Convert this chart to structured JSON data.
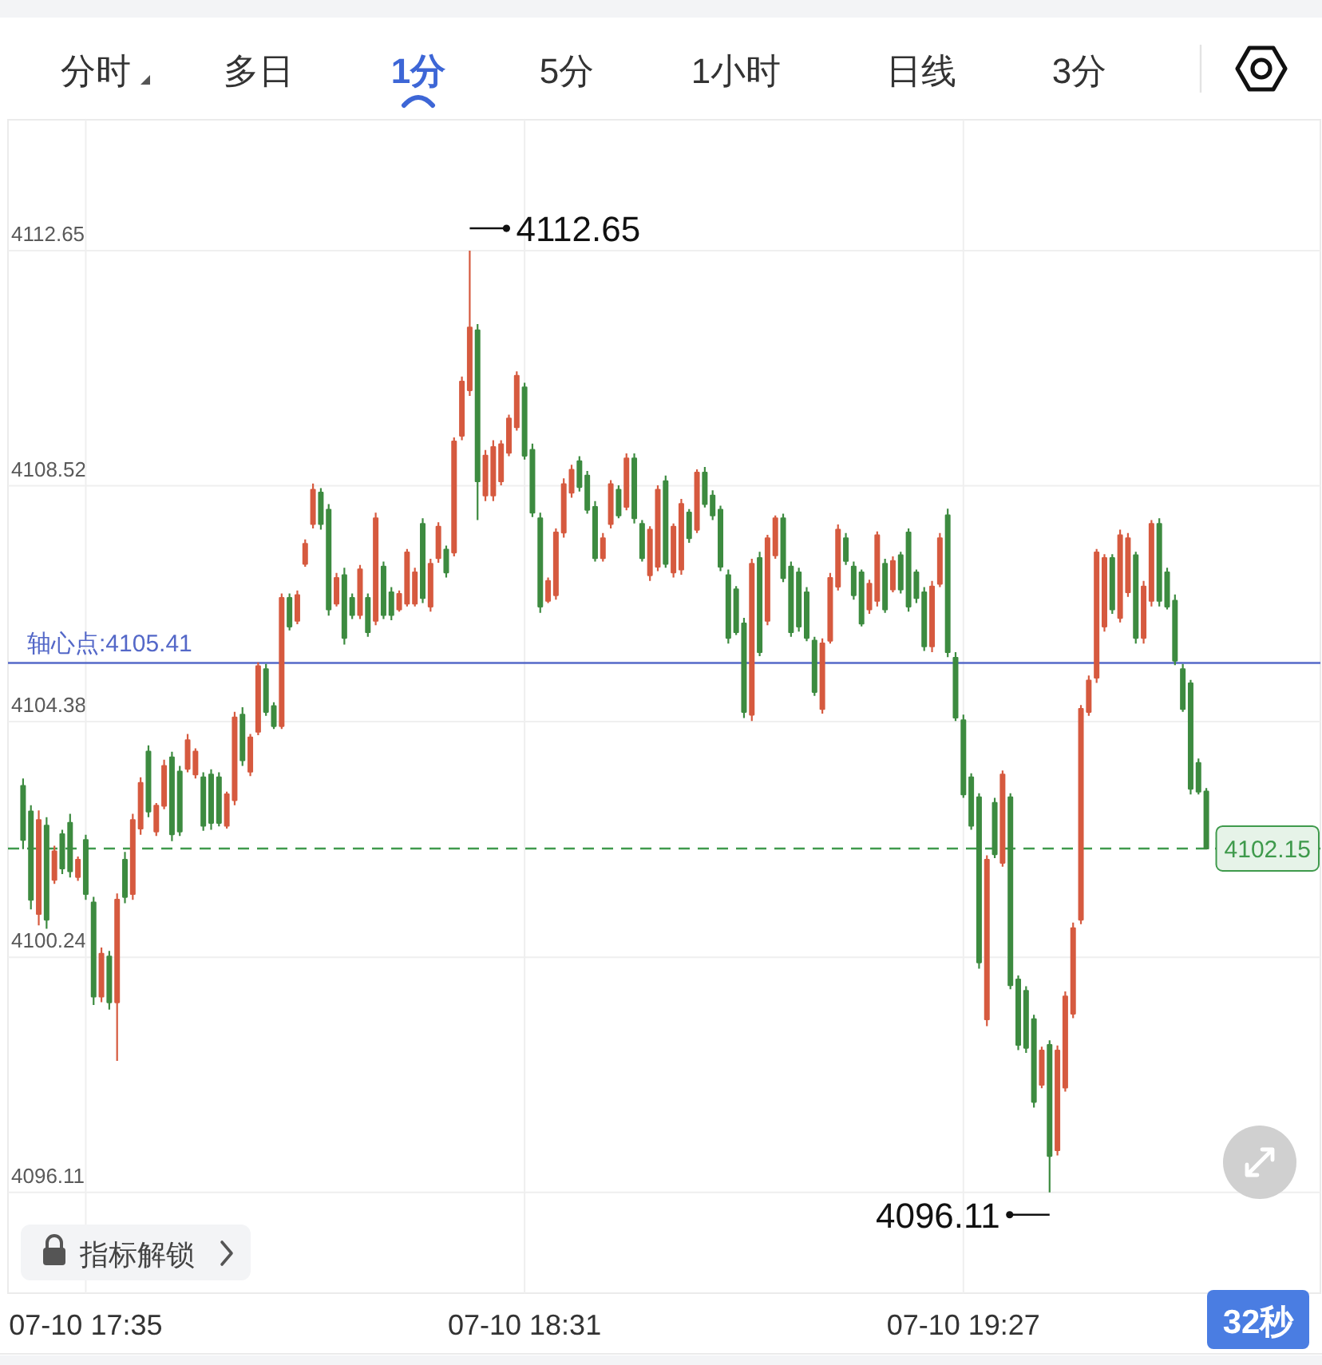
{
  "chart_data": {
    "type": "candlestick",
    "categories": [
      null,
      null,
      null,
      null,
      null,
      null,
      null,
      null,
      "07-10 17:35",
      null,
      null,
      null,
      null,
      null,
      null,
      null,
      null,
      null,
      null,
      null,
      null,
      null,
      null,
      null,
      null,
      null,
      null,
      null,
      null,
      null,
      null,
      null,
      null,
      null,
      null,
      null,
      null,
      null,
      null,
      null,
      null,
      null,
      null,
      null,
      null,
      null,
      null,
      null,
      null,
      null,
      null,
      null,
      null,
      null,
      null,
      null,
      null,
      null,
      null,
      null,
      null,
      null,
      null,
      null,
      "07-10 18:31",
      null,
      null,
      null,
      null,
      null,
      null,
      null,
      null,
      null,
      null,
      null,
      null,
      null,
      null,
      null,
      null,
      null,
      null,
      null,
      null,
      null,
      null,
      null,
      null,
      null,
      null,
      null,
      null,
      null,
      null,
      null,
      null,
      null,
      null,
      null,
      null,
      null,
      null,
      null,
      null,
      null,
      null,
      null,
      null,
      null,
      null,
      null,
      null,
      null,
      null,
      null,
      null,
      null,
      null,
      null,
      "07-10 19:27",
      null,
      null,
      null,
      null,
      null,
      null,
      null,
      null,
      null,
      null,
      null,
      null,
      null,
      null,
      null,
      null,
      null,
      null,
      null,
      null,
      null,
      null,
      null,
      null,
      null,
      null,
      null,
      null,
      null,
      null,
      null
    ],
    "ohlc": [
      [
        4103.25,
        4103.38,
        4102.14,
        4102.3
      ],
      [
        4102.8,
        4102.91,
        4101.08,
        4101.25
      ],
      [
        4101.0,
        4102.82,
        4100.8,
        4102.65
      ],
      [
        4102.55,
        4102.7,
        4100.74,
        4100.9
      ],
      [
        4101.6,
        4102.2,
        4101.53,
        4102.1
      ],
      [
        4102.4,
        4102.48,
        4101.7,
        4101.8
      ],
      [
        4102.6,
        4102.76,
        4101.64,
        4101.75
      ],
      [
        4101.65,
        4102.01,
        4101.58,
        4101.95
      ],
      [
        4102.3,
        4102.39,
        4101.25,
        4101.35
      ],
      [
        4101.2,
        4101.3,
        4099.4,
        4099.55
      ],
      [
        4099.55,
        4100.41,
        4099.45,
        4100.3
      ],
      [
        4100.25,
        4100.35,
        4099.32,
        4099.45
      ],
      [
        4099.45,
        4101.36,
        4098.42,
        4101.25
      ],
      [
        4101.95,
        4102.09,
        4101.19,
        4101.3
      ],
      [
        4101.35,
        4102.76,
        4101.25,
        4102.65
      ],
      [
        4102.5,
        4103.4,
        4102.39,
        4103.3
      ],
      [
        4103.85,
        4103.96,
        4102.7,
        4102.8
      ],
      [
        4102.45,
        4102.95,
        4102.37,
        4102.9
      ],
      [
        4102.9,
        4103.71,
        4102.84,
        4103.6
      ],
      [
        4103.75,
        4103.85,
        4102.28,
        4102.4
      ],
      [
        4103.5,
        4103.6,
        4102.37,
        4102.45
      ],
      [
        4103.55,
        4104.16,
        4103.49,
        4104.05
      ],
      [
        4103.45,
        4103.91,
        4103.38,
        4103.85
      ],
      [
        4103.4,
        4103.49,
        4102.46,
        4102.55
      ],
      [
        4103.45,
        4103.54,
        4102.48,
        4102.6
      ],
      [
        4103.4,
        4103.49,
        4102.54,
        4102.6
      ],
      [
        4102.55,
        4103.15,
        4102.5,
        4103.1
      ],
      [
        4103.0,
        4104.55,
        4102.91,
        4104.45
      ],
      [
        4104.5,
        4104.63,
        4103.6,
        4103.7
      ],
      [
        4103.5,
        4104.16,
        4103.42,
        4104.1
      ],
      [
        4104.2,
        4105.42,
        4104.14,
        4105.35
      ],
      [
        4105.3,
        4105.39,
        4104.48,
        4104.55
      ],
      [
        4104.65,
        4104.72,
        4104.25,
        4104.3
      ],
      [
        4104.3,
        4106.63,
        4104.25,
        4106.55
      ],
      [
        4106.55,
        4106.63,
        4105.98,
        4106.05
      ],
      [
        4106.15,
        4106.68,
        4106.09,
        4106.6
      ],
      [
        4107.15,
        4107.58,
        4107.1,
        4107.5
      ],
      [
        4107.85,
        4108.56,
        4107.77,
        4108.45
      ],
      [
        4108.4,
        4108.48,
        4107.75,
        4107.85
      ],
      [
        4108.1,
        4108.2,
        4106.24,
        4106.35
      ],
      [
        4106.45,
        4106.99,
        4106.4,
        4106.9
      ],
      [
        4106.95,
        4107.08,
        4105.73,
        4105.85
      ],
      [
        4106.55,
        4106.63,
        4106.18,
        4106.25
      ],
      [
        4106.25,
        4107.13,
        4106.18,
        4107.05
      ],
      [
        4106.55,
        4106.63,
        4105.87,
        4105.95
      ],
      [
        4106.15,
        4108.05,
        4106.07,
        4107.95
      ],
      [
        4107.1,
        4107.19,
        4106.18,
        4106.25
      ],
      [
        4106.65,
        4106.74,
        4106.16,
        4106.25
      ],
      [
        4106.35,
        4106.68,
        4106.31,
        4106.62
      ],
      [
        4106.45,
        4107.41,
        4106.4,
        4107.35
      ],
      [
        4106.45,
        4107.08,
        4106.4,
        4107.0
      ],
      [
        4107.85,
        4107.95,
        4106.46,
        4106.55
      ],
      [
        4106.4,
        4107.24,
        4106.31,
        4107.15
      ],
      [
        4107.25,
        4107.88,
        4107.17,
        4107.8
      ],
      [
        4107.4,
        4107.47,
        4106.91,
        4107.0
      ],
      [
        4107.35,
        4109.37,
        4107.28,
        4109.3
      ],
      [
        4109.4,
        4110.44,
        4109.32,
        4110.35
      ],
      [
        4110.2,
        4112.65,
        4110.1,
        4111.3
      ],
      [
        4111.25,
        4111.36,
        4107.92,
        4108.6
      ],
      [
        4108.35,
        4109.15,
        4108.25,
        4109.05
      ],
      [
        4108.35,
        4109.32,
        4108.25,
        4109.2
      ],
      [
        4108.6,
        4109.32,
        4108.53,
        4109.25
      ],
      [
        4109.1,
        4109.77,
        4109.04,
        4109.7
      ],
      [
        4109.55,
        4110.53,
        4109.49,
        4110.45
      ],
      [
        4110.25,
        4110.33,
        4108.98,
        4109.05
      ],
      [
        4109.15,
        4109.26,
        4107.97,
        4108.05
      ],
      [
        4107.95,
        4108.05,
        4106.29,
        4106.4
      ],
      [
        4106.5,
        4106.91,
        4106.46,
        4106.85
      ],
      [
        4106.6,
        4107.77,
        4106.52,
        4107.7
      ],
      [
        4107.7,
        4108.65,
        4107.61,
        4108.55
      ],
      [
        4108.4,
        4108.89,
        4108.31,
        4108.8
      ],
      [
        4108.95,
        4109.04,
        4108.42,
        4108.5
      ],
      [
        4108.7,
        4108.78,
        4108.03,
        4108.1
      ],
      [
        4108.15,
        4108.25,
        4107.19,
        4107.25
      ],
      [
        4107.25,
        4107.69,
        4107.19,
        4107.6
      ],
      [
        4107.85,
        4108.62,
        4107.77,
        4108.55
      ],
      [
        4108.45,
        4108.53,
        4107.95,
        4108.0
      ],
      [
        4108.15,
        4109.09,
        4108.09,
        4109.0
      ],
      [
        4109.0,
        4109.09,
        4107.86,
        4107.95
      ],
      [
        4107.85,
        4107.92,
        4107.19,
        4107.25
      ],
      [
        4106.95,
        4107.81,
        4106.85,
        4107.75
      ],
      [
        4107.1,
        4108.53,
        4107.02,
        4108.45
      ],
      [
        4108.6,
        4108.7,
        4107.08,
        4107.15
      ],
      [
        4107.0,
        4107.86,
        4106.91,
        4107.8
      ],
      [
        4107.05,
        4108.29,
        4106.96,
        4108.2
      ],
      [
        4108.05,
        4108.11,
        4107.52,
        4107.6
      ],
      [
        4107.75,
        4108.81,
        4107.69,
        4108.75
      ],
      [
        4108.75,
        4108.85,
        4108.14,
        4108.2
      ],
      [
        4108.35,
        4108.44,
        4107.92,
        4108.0
      ],
      [
        4108.1,
        4108.17,
        4107.02,
        4107.1
      ],
      [
        4106.95,
        4107.05,
        4105.75,
        4105.85
      ],
      [
        4106.7,
        4106.76,
        4105.9,
        4105.95
      ],
      [
        4106.1,
        4106.2,
        4104.44,
        4104.55
      ],
      [
        4104.5,
        4107.24,
        4104.39,
        4107.15
      ],
      [
        4107.25,
        4107.36,
        4105.53,
        4105.6
      ],
      [
        4106.15,
        4107.66,
        4106.07,
        4107.6
      ],
      [
        4107.3,
        4108.0,
        4107.24,
        4107.95
      ],
      [
        4107.95,
        4108.03,
        4106.83,
        4106.9
      ],
      [
        4107.1,
        4107.19,
        4105.87,
        4105.95
      ],
      [
        4107.0,
        4107.08,
        4105.96,
        4106.05
      ],
      [
        4106.65,
        4106.74,
        4105.79,
        4105.85
      ],
      [
        4105.8,
        4105.87,
        4104.83,
        4104.9
      ],
      [
        4104.6,
        4105.84,
        4104.52,
        4105.75
      ],
      [
        4105.8,
        4106.99,
        4105.75,
        4106.9
      ],
      [
        4106.75,
        4107.84,
        4106.68,
        4107.75
      ],
      [
        4107.6,
        4107.69,
        4107.13,
        4107.2
      ],
      [
        4107.1,
        4107.19,
        4106.52,
        4106.6
      ],
      [
        4107.0,
        4107.05,
        4106.05,
        4106.1
      ],
      [
        4106.35,
        4106.87,
        4106.27,
        4106.8
      ],
      [
        4106.5,
        4107.72,
        4106.4,
        4107.65
      ],
      [
        4107.15,
        4107.24,
        4106.29,
        4106.35
      ],
      [
        4106.7,
        4107.28,
        4106.65,
        4107.2
      ],
      [
        4107.3,
        4107.36,
        4106.63,
        4106.7
      ],
      [
        4107.7,
        4107.77,
        4106.31,
        4106.4
      ],
      [
        4107.0,
        4107.05,
        4106.46,
        4106.55
      ],
      [
        4106.65,
        4106.74,
        4105.62,
        4105.7
      ],
      [
        4105.7,
        4106.85,
        4105.6,
        4106.75
      ],
      [
        4106.8,
        4107.69,
        4106.74,
        4107.6
      ],
      [
        4108.0,
        4108.12,
        4105.51,
        4105.6
      ],
      [
        4105.5,
        4105.6,
        4104.39,
        4104.45
      ],
      [
        4104.4,
        4104.5,
        4103.04,
        4103.1
      ],
      [
        4103.4,
        4103.47,
        4102.48,
        4102.55
      ],
      [
        4103.05,
        4103.12,
        4100.04,
        4100.15
      ],
      [
        4099.15,
        4102.03,
        4099.03,
        4101.95
      ],
      [
        4102.95,
        4103.04,
        4101.98,
        4102.05
      ],
      [
        4101.9,
        4103.52,
        4101.83,
        4103.45
      ],
      [
        4103.05,
        4103.12,
        4099.68,
        4099.75
      ],
      [
        4099.85,
        4099.92,
        4098.61,
        4098.7
      ],
      [
        4099.65,
        4099.73,
        4098.56,
        4098.65
      ],
      [
        4099.15,
        4099.23,
        4097.6,
        4097.7
      ],
      [
        4098.0,
        4098.67,
        4097.94,
        4098.6
      ],
      [
        4098.7,
        4098.78,
        4096.11,
        4096.75
      ],
      [
        4096.85,
        4098.69,
        4096.76,
        4098.6
      ],
      [
        4097.95,
        4099.64,
        4097.88,
        4099.55
      ],
      [
        4099.25,
        4100.85,
        4099.17,
        4100.75
      ],
      [
        4100.9,
        4104.67,
        4100.82,
        4104.6
      ],
      [
        4104.55,
        4105.19,
        4104.48,
        4105.1
      ],
      [
        4105.15,
        4107.41,
        4105.06,
        4107.35
      ],
      [
        4106.05,
        4107.32,
        4105.96,
        4107.25
      ],
      [
        4107.25,
        4107.32,
        4106.27,
        4106.35
      ],
      [
        4106.2,
        4107.75,
        4106.12,
        4107.65
      ],
      [
        4106.65,
        4107.69,
        4106.57,
        4107.6
      ],
      [
        4107.3,
        4107.36,
        4105.75,
        4105.85
      ],
      [
        4105.85,
        4106.85,
        4105.75,
        4106.75
      ],
      [
        4106.5,
        4107.92,
        4106.4,
        4107.85
      ],
      [
        4107.85,
        4107.95,
        4106.4,
        4106.5
      ],
      [
        4107.0,
        4107.08,
        4106.35,
        4106.4
      ],
      [
        4106.5,
        4106.61,
        4105.37,
        4105.45
      ],
      [
        4105.3,
        4105.39,
        4104.55,
        4104.6
      ],
      [
        4105.05,
        4105.11,
        4103.1,
        4103.2
      ],
      [
        4103.65,
        4103.73,
        4103.1,
        4103.15
      ],
      [
        4103.15,
        4103.21,
        4102.15,
        4102.15
      ]
    ],
    "colors": [
      "#3d8b40",
      "#3d8b40",
      "#d65a3f",
      "#3d8b40",
      "#d65a3f",
      "#3d8b40",
      "#3d8b40",
      "#d65a3f",
      "#3d8b40",
      "#3d8b40",
      "#d65a3f",
      "#3d8b40",
      "#d65a3f",
      "#3d8b40",
      "#d65a3f",
      "#d65a3f",
      "#3d8b40",
      "#d65a3f",
      "#d65a3f",
      "#3d8b40",
      "#3d8b40",
      "#d65a3f",
      "#d65a3f",
      "#3d8b40",
      "#3d8b40",
      "#3d8b40",
      "#d65a3f",
      "#d65a3f",
      "#3d8b40",
      "#d65a3f",
      "#d65a3f",
      "#3d8b40",
      "#3d8b40",
      "#d65a3f",
      "#3d8b40",
      "#d65a3f",
      "#d65a3f",
      "#d65a3f",
      "#3d8b40",
      "#3d8b40",
      "#d65a3f",
      "#3d8b40",
      "#3d8b40",
      "#d65a3f",
      "#3d8b40",
      "#d65a3f",
      "#3d8b40",
      "#3d8b40",
      "#d65a3f",
      "#d65a3f",
      "#d65a3f",
      "#3d8b40",
      "#d65a3f",
      "#d65a3f",
      "#3d8b40",
      "#d65a3f",
      "#d65a3f",
      "#d65a3f",
      "#3d8b40",
      "#d65a3f",
      "#d65a3f",
      "#d65a3f",
      "#d65a3f",
      "#d65a3f",
      "#3d8b40",
      "#3d8b40",
      "#3d8b40",
      "#d65a3f",
      "#d65a3f",
      "#d65a3f",
      "#d65a3f",
      "#3d8b40",
      "#3d8b40",
      "#3d8b40",
      "#d65a3f",
      "#d65a3f",
      "#3d8b40",
      "#d65a3f",
      "#3d8b40",
      "#3d8b40",
      "#d65a3f",
      "#d65a3f",
      "#3d8b40",
      "#d65a3f",
      "#d65a3f",
      "#3d8b40",
      "#d65a3f",
      "#3d8b40",
      "#3d8b40",
      "#3d8b40",
      "#3d8b40",
      "#3d8b40",
      "#3d8b40",
      "#d65a3f",
      "#3d8b40",
      "#d65a3f",
      "#d65a3f",
      "#3d8b40",
      "#3d8b40",
      "#3d8b40",
      "#3d8b40",
      "#3d8b40",
      "#d65a3f",
      "#d65a3f",
      "#d65a3f",
      "#3d8b40",
      "#3d8b40",
      "#3d8b40",
      "#d65a3f",
      "#d65a3f",
      "#3d8b40",
      "#d65a3f",
      "#3d8b40",
      "#3d8b40",
      "#3d8b40",
      "#3d8b40",
      "#d65a3f",
      "#d65a3f",
      "#3d8b40",
      "#3d8b40",
      "#3d8b40",
      "#3d8b40",
      "#3d8b40",
      "#d65a3f",
      "#3d8b40",
      "#d65a3f",
      "#3d8b40",
      "#3d8b40",
      "#3d8b40",
      "#3d8b40",
      "#d65a3f",
      "#3d8b40",
      "#d65a3f",
      "#d65a3f",
      "#d65a3f",
      "#d65a3f",
      "#d65a3f",
      "#d65a3f",
      "#d65a3f",
      "#3d8b40",
      "#d65a3f",
      "#d65a3f",
      "#3d8b40",
      "#d65a3f",
      "#d65a3f",
      "#3d8b40",
      "#3d8b40",
      "#3d8b40",
      "#3d8b40",
      "#3d8b40",
      "#3d8b40",
      "#3d8b40"
    ],
    "ylim": [
      4094.34,
      4114.95
    ],
    "yticks": [
      4112.65,
      4108.52,
      4104.38,
      4100.24,
      4096.11
    ],
    "grid": true,
    "ref_lines": [
      {
        "axis": "y",
        "value": 4105.41,
        "label": "轴心点:4105.41",
        "color": "#5468c8"
      },
      {
        "axis": "y",
        "value": 4102.15,
        "label": "4102.15",
        "color": "#3f9a4c",
        "line_style": "dashed"
      }
    ],
    "annotations": [
      "分时",
      "多日",
      "1分",
      "5分",
      "1小时",
      "日线",
      "3分",
      "指标解锁",
      "32秒",
      "4112.65",
      "4096.11"
    ]
  }
}
